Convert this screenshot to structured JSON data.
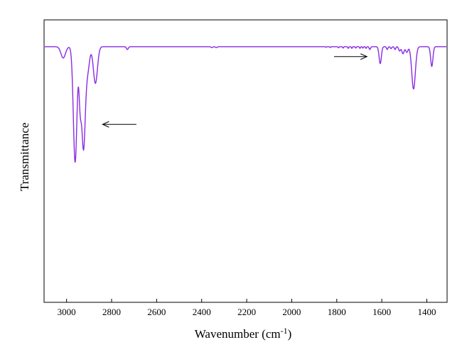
{
  "chart_data": {
    "type": "line",
    "title": "",
    "xlabel": "Wavenumber (cm",
    "xlabel_sup": "-1",
    "xlabel_close": ")",
    "ylabel": "Transmittance",
    "xlim": [
      3100,
      1310
    ],
    "x_reversed": true,
    "ylim": [
      0,
      1
    ],
    "y_ticks_shown": false,
    "grid": false,
    "x_ticks": [
      3000,
      2800,
      2600,
      2400,
      2200,
      2000,
      1800,
      1600,
      1400
    ],
    "x_tick_labels": [
      "3000",
      "2800",
      "2600",
      "2400",
      "2200",
      "2000",
      "1800",
      "1600",
      "1400"
    ],
    "series": [
      {
        "color": "#8B2BE2",
        "peaks": [
          {
            "x": 3015,
            "depth": 0.04,
            "width": 10
          },
          {
            "x": 2962,
            "depth": 0.41,
            "width": 8
          },
          {
            "x": 2940,
            "depth": 0.17,
            "width": 5
          },
          {
            "x": 2925,
            "depth": 0.36,
            "width": 8
          },
          {
            "x": 2906,
            "depth": 0.08,
            "width": 8
          },
          {
            "x": 2872,
            "depth": 0.13,
            "width": 9
          },
          {
            "x": 2730,
            "depth": 0.01,
            "width": 4
          },
          {
            "x": 2355,
            "depth": 0.003,
            "width": 4
          },
          {
            "x": 2335,
            "depth": 0.003,
            "width": 4
          },
          {
            "x": 1847,
            "depth": 0.002,
            "width": 2
          },
          {
            "x": 1829,
            "depth": 0.003,
            "width": 2
          },
          {
            "x": 1792,
            "depth": 0.004,
            "width": 2
          },
          {
            "x": 1772,
            "depth": 0.005,
            "width": 2
          },
          {
            "x": 1749,
            "depth": 0.006,
            "width": 2
          },
          {
            "x": 1733,
            "depth": 0.006,
            "width": 2
          },
          {
            "x": 1716,
            "depth": 0.005,
            "width": 2
          },
          {
            "x": 1697,
            "depth": 0.006,
            "width": 2
          },
          {
            "x": 1684,
            "depth": 0.005,
            "width": 2
          },
          {
            "x": 1670,
            "depth": 0.006,
            "width": 2
          },
          {
            "x": 1653,
            "depth": 0.01,
            "width": 3
          },
          {
            "x": 1607,
            "depth": 0.06,
            "width": 5
          },
          {
            "x": 1576,
            "depth": 0.01,
            "width": 3
          },
          {
            "x": 1559,
            "depth": 0.007,
            "width": 3
          },
          {
            "x": 1541,
            "depth": 0.01,
            "width": 3
          },
          {
            "x": 1521,
            "depth": 0.015,
            "width": 4
          },
          {
            "x": 1506,
            "depth": 0.025,
            "width": 5
          },
          {
            "x": 1489,
            "depth": 0.02,
            "width": 5
          },
          {
            "x": 1459,
            "depth": 0.15,
            "width": 8
          },
          {
            "x": 1378,
            "depth": 0.07,
            "width": 5
          }
        ]
      }
    ],
    "annotations": [
      {
        "type": "arrow",
        "direction": "left",
        "from_x": 2690,
        "to_x": 2840,
        "y": 0.63
      },
      {
        "type": "arrow",
        "direction": "right",
        "from_x": 1812,
        "to_x": 1666,
        "y": 0.87
      }
    ]
  }
}
